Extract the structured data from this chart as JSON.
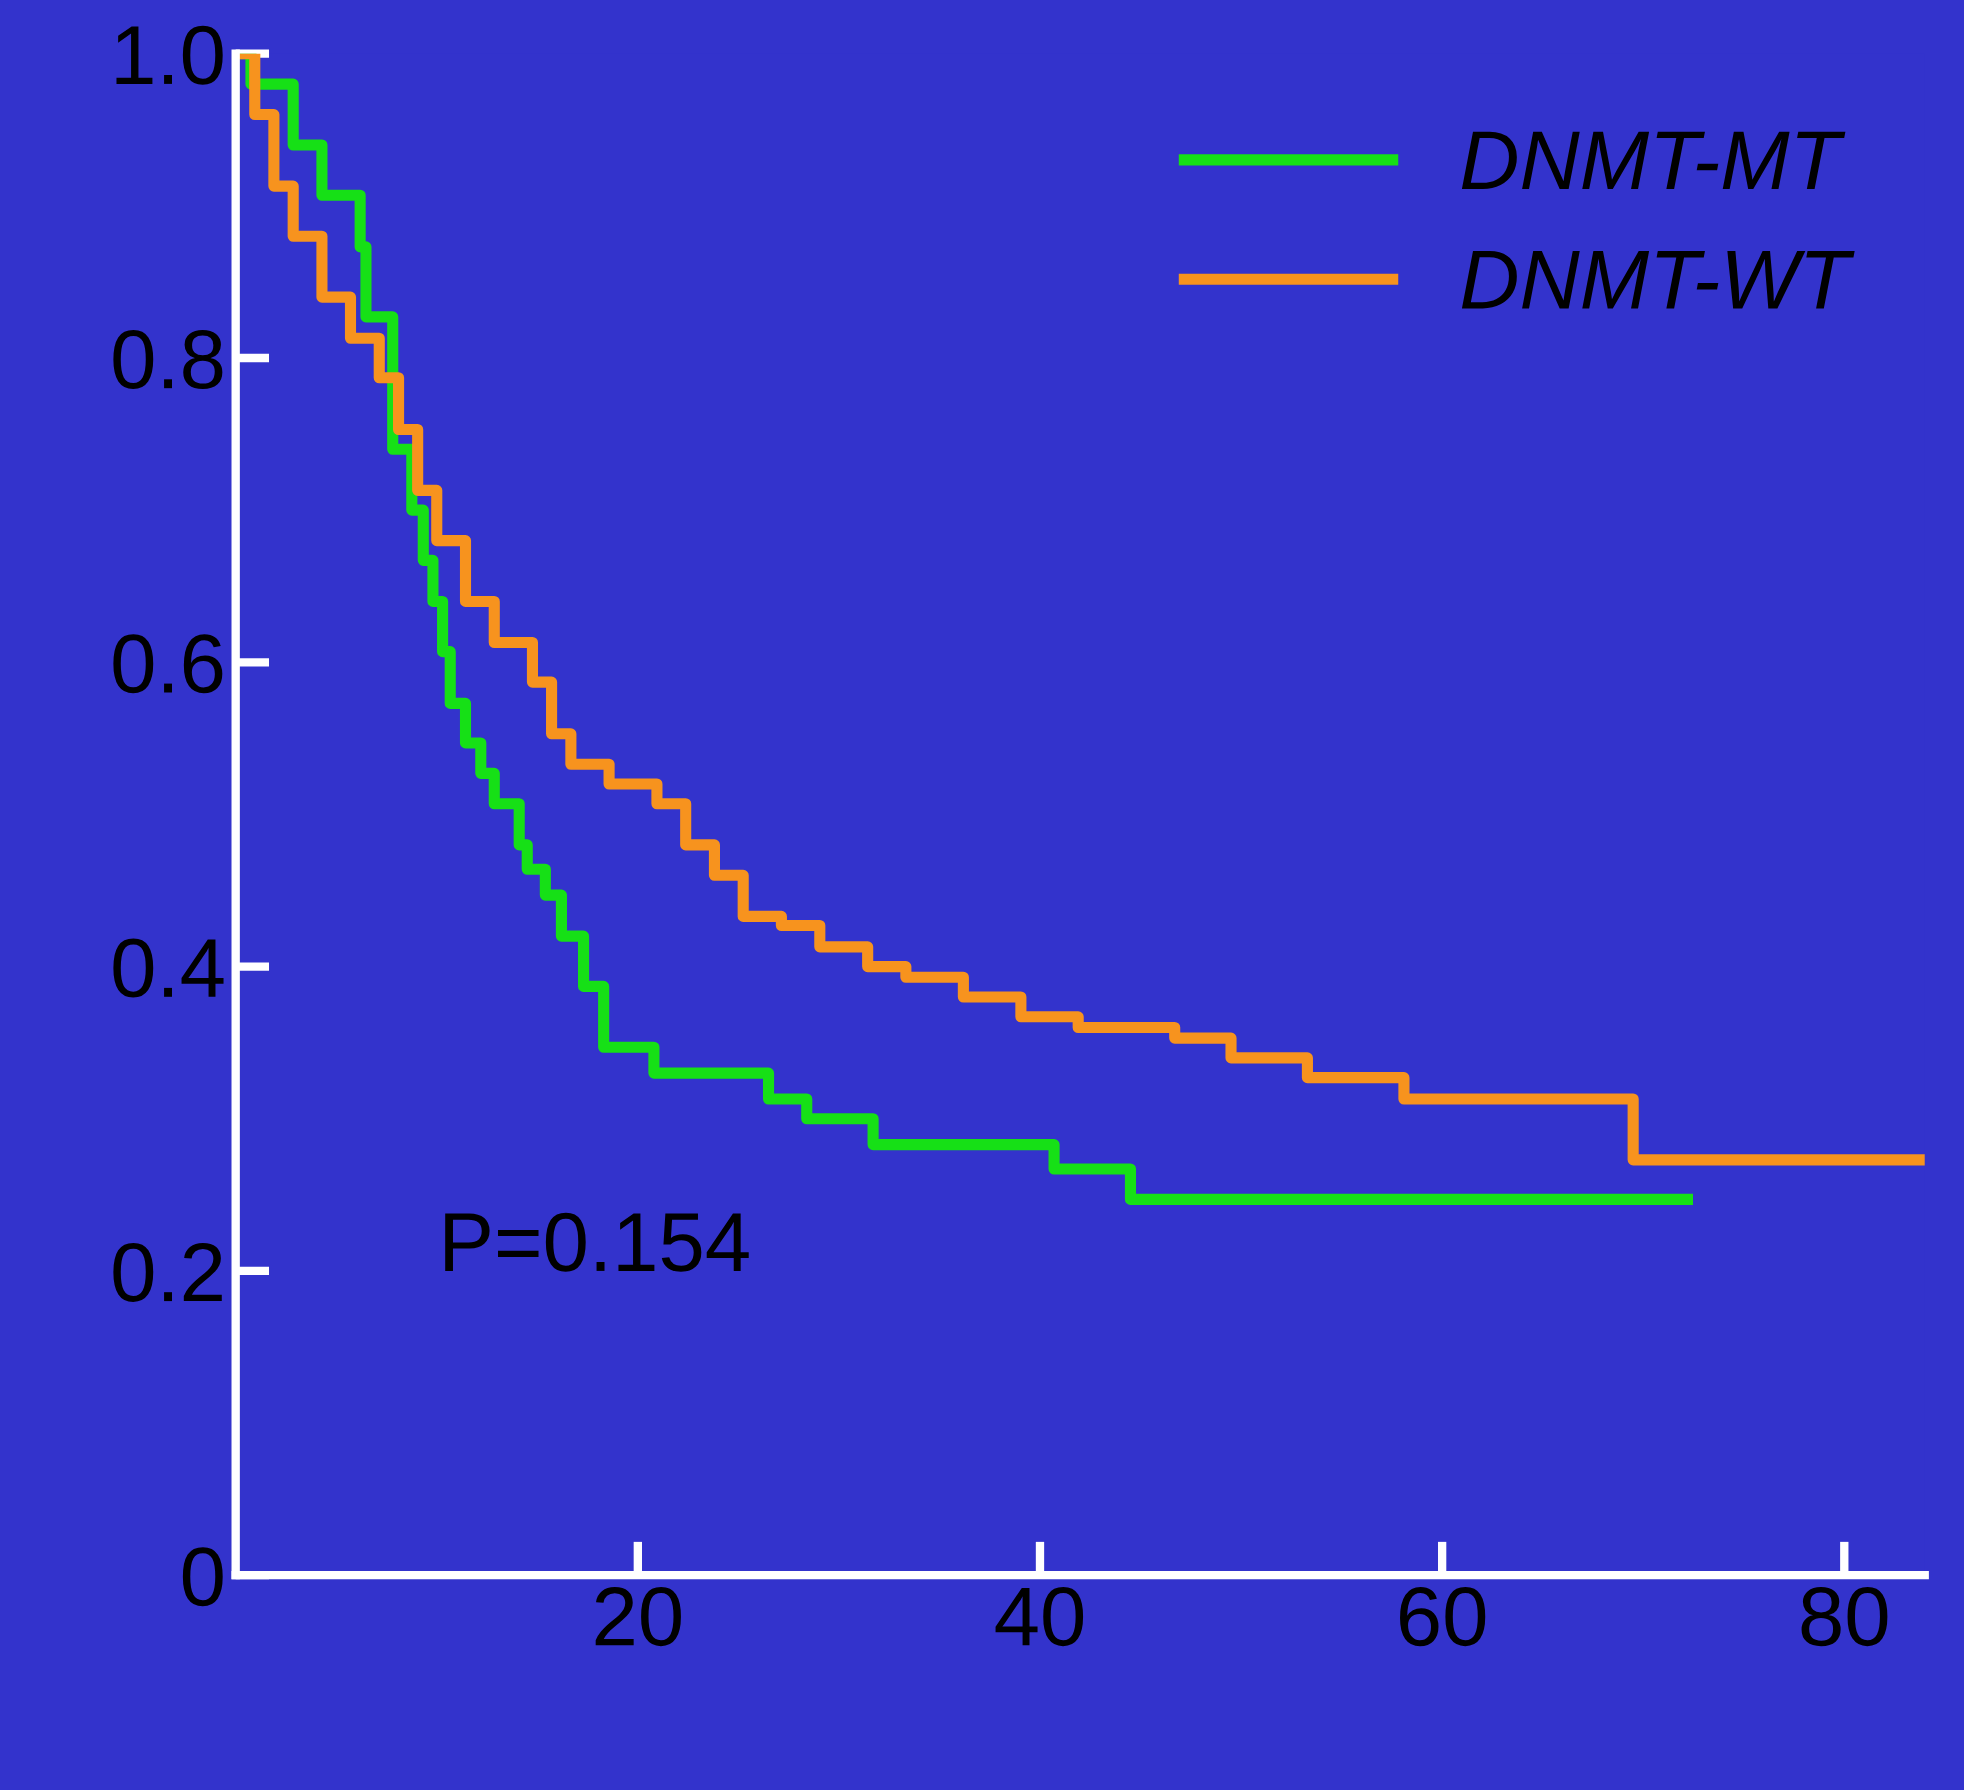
{
  "chart_data": {
    "type": "step",
    "xlim": [
      0,
      84
    ],
    "ylim": [
      0,
      1.0
    ],
    "xticks": [
      20,
      40,
      60,
      80
    ],
    "yticks": [
      0,
      0.2,
      0.4,
      0.6,
      0.8,
      {
        "value": 1.0,
        "label": "1.0"
      }
    ],
    "grid": false,
    "legend": "top right",
    "line_style": "solid",
    "marker": "none",
    "annotations": [
      "P=0.154"
    ],
    "series": [
      {
        "name": "DNMT-MT",
        "color": "#16e016",
        "x": [
          0,
          0.76,
          2.86,
          4.29,
          6.19,
          6.48,
          7.81,
          8.76,
          9.33,
          9.81,
          10.29,
          10.67,
          11.43,
          12.19,
          12.86,
          14.1,
          14.5,
          15.4,
          16.2,
          17.3,
          18.3,
          20.8,
          26.5,
          28.4,
          31.7,
          40.7,
          44.5,
          72.2
        ],
        "values": [
          1.0,
          0.98,
          0.94,
          0.907,
          0.873,
          0.827,
          0.74,
          0.7,
          0.667,
          0.64,
          0.607,
          0.573,
          0.547,
          0.527,
          0.507,
          0.48,
          0.464,
          0.447,
          0.42,
          0.387,
          0.347,
          0.33,
          0.313,
          0.3,
          0.283,
          0.267,
          0.247,
          0.247
        ]
      },
      {
        "name": "DNMT-WT",
        "color": "#f7931e",
        "x": [
          0,
          0.95,
          1.9,
          2.86,
          4.29,
          5.71,
          7.14,
          8.1,
          9.05,
          10.0,
          11.43,
          12.86,
          14.76,
          15.71,
          16.67,
          18.57,
          20.95,
          22.38,
          23.81,
          25.24,
          27.14,
          29.05,
          31.43,
          33.33,
          36.19,
          39.05,
          41.9,
          46.7,
          49.5,
          53.3,
          58.1,
          69.5,
          84
        ],
        "values": [
          1.0,
          0.96,
          0.913,
          0.88,
          0.84,
          0.813,
          0.787,
          0.753,
          0.713,
          0.68,
          0.64,
          0.613,
          0.587,
          0.553,
          0.533,
          0.52,
          0.507,
          0.48,
          0.46,
          0.433,
          0.427,
          0.413,
          0.4,
          0.393,
          0.38,
          0.367,
          0.36,
          0.353,
          0.34,
          0.327,
          0.313,
          0.273,
          0.273
        ]
      }
    ]
  }
}
